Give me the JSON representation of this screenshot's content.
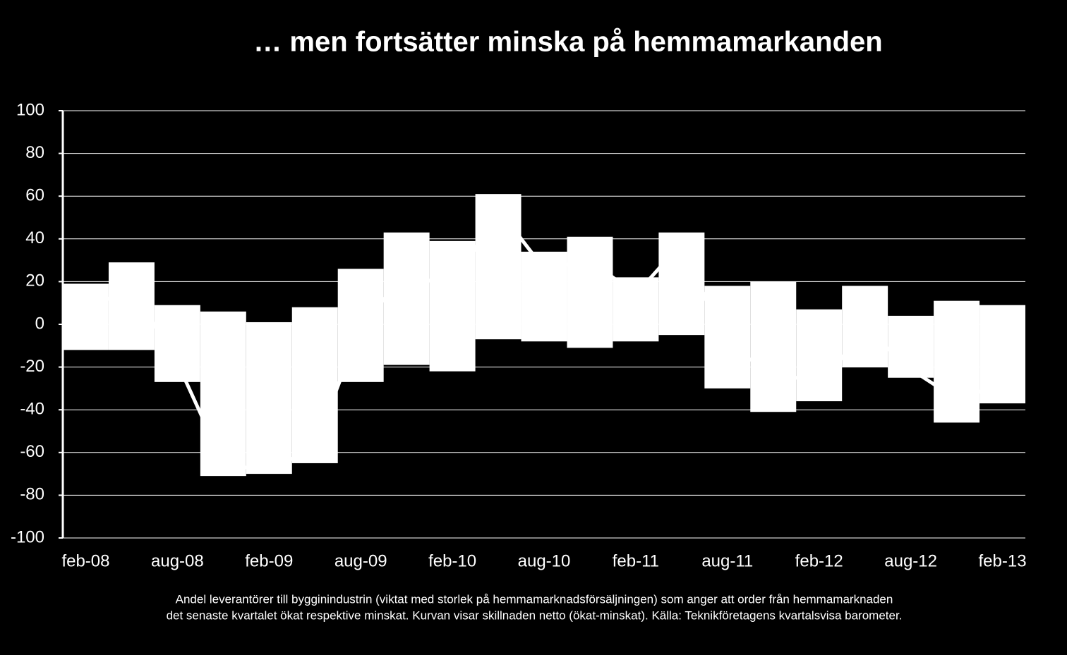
{
  "chart_data": {
    "type": "bar",
    "title": "… men fortsätter minska på hemmamarkanden",
    "note": [
      "Andel leverantörer till bygginindustrin (viktat med storlek på hemmamarknadsförsäljningen)  som anger att order från hemmamarknaden",
      "det senaste kvartalet ökat respektive minskat. Kurvan visar skillnaden netto (ökat-minskat). Källa: Teknikföretagens kvartalsvisa barometer."
    ],
    "categories": [
      "feb-08",
      null,
      "aug-08",
      null,
      "feb-09",
      null,
      "aug-09",
      null,
      "feb-10",
      null,
      "aug-10",
      null,
      "feb-11",
      null,
      "aug-11",
      null,
      "feb-12",
      null,
      "aug-12",
      null,
      "feb-13"
    ],
    "series": [
      {
        "kind": "bar",
        "color": "#ffffff",
        "values": [
          19,
          29,
          9,
          6,
          1,
          8,
          26,
          43,
          39,
          61,
          34,
          41,
          22,
          43,
          18,
          20,
          7,
          18,
          4,
          11,
          9
        ]
      },
      {
        "kind": "bar",
        "color": "#ffffff",
        "values": [
          -12,
          -12,
          -27,
          -71,
          -70,
          -65,
          -27,
          -19,
          -22,
          -7,
          -8,
          -11,
          -8,
          -5,
          -30,
          -41,
          -36,
          -20,
          -25,
          -46,
          -37
        ]
      },
      {
        "kind": "line",
        "color": "#ffffff",
        "values": [
          7,
          17,
          -18,
          -65,
          -69,
          -57,
          -1,
          24,
          17,
          54,
          26,
          30,
          14,
          38,
          -12,
          -21,
          -29,
          -2,
          -21,
          -35,
          -28
        ]
      }
    ],
    "ylim": [
      -100,
      100
    ],
    "yticks": [
      -100,
      -80,
      -60,
      -40,
      -20,
      0,
      20,
      40,
      60,
      80,
      100
    ],
    "grid": true
  }
}
